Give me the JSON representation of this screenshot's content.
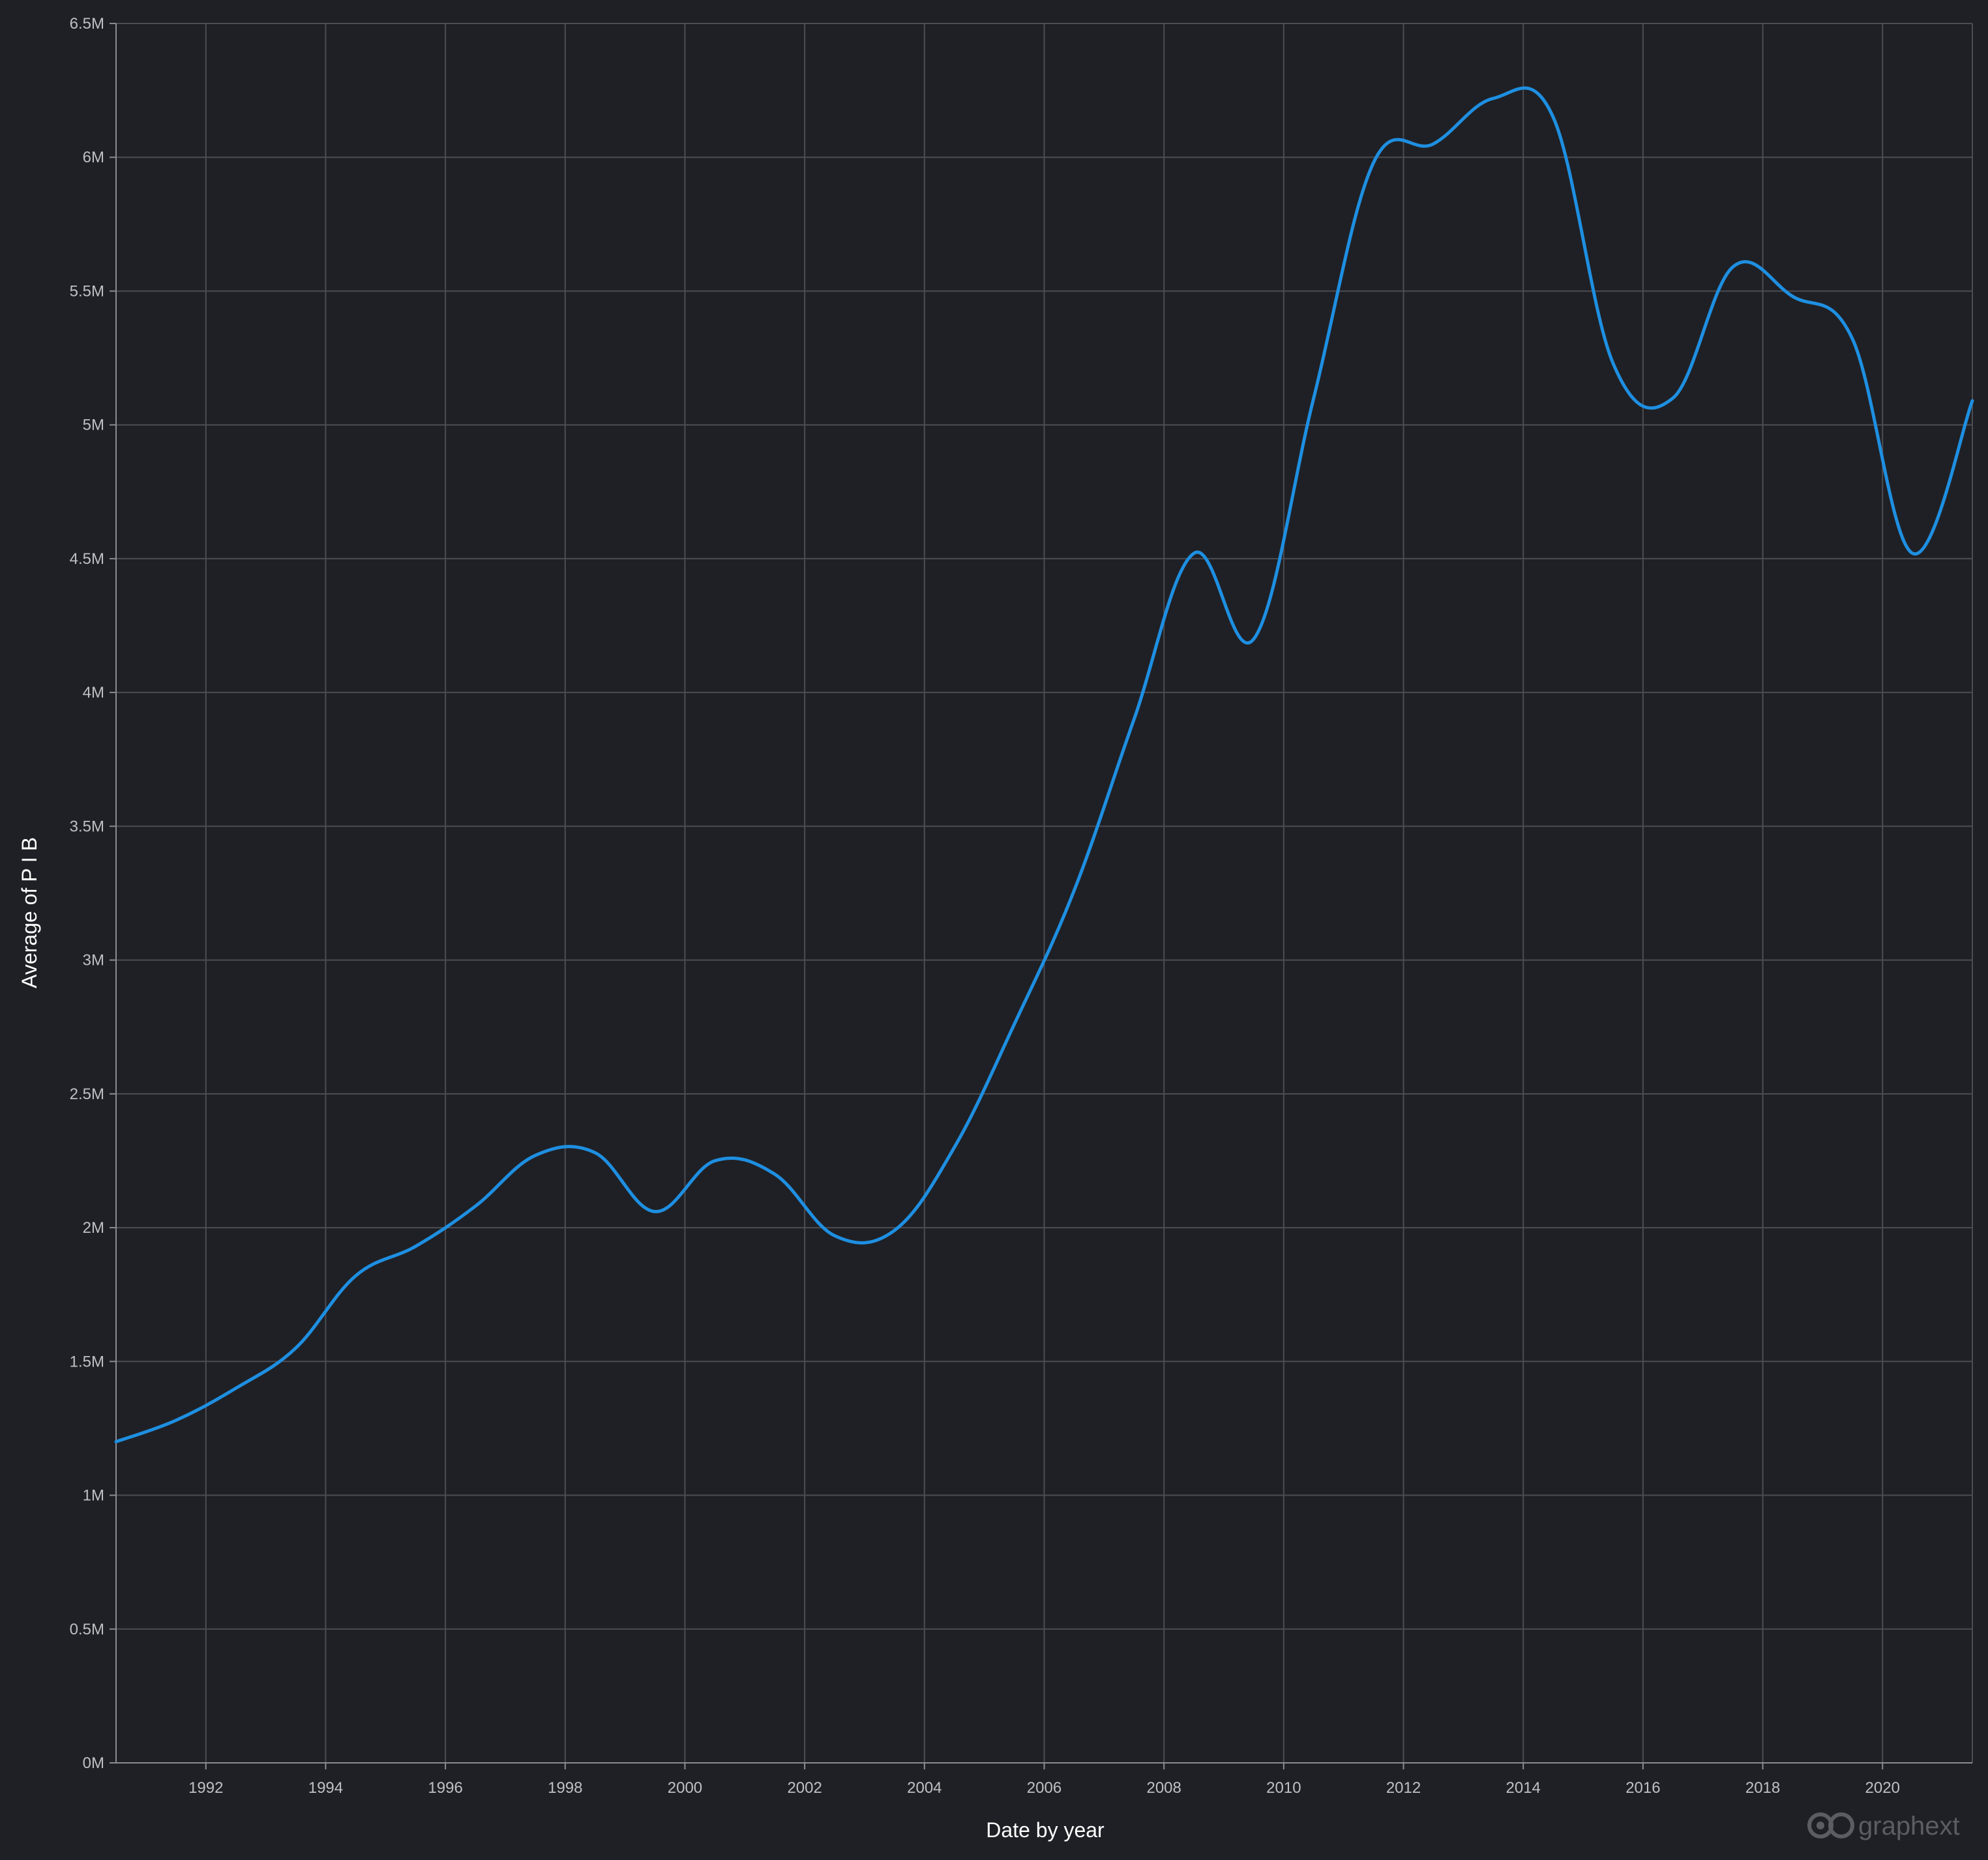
{
  "chart_data": {
    "type": "line",
    "xlabel": "Date by year",
    "ylabel": "Average of P I B",
    "x_ticks": [
      "1992",
      "1994",
      "1996",
      "1998",
      "2000",
      "2002",
      "2004",
      "2006",
      "2008",
      "2010",
      "2012",
      "2014",
      "2016",
      "2018",
      "2020"
    ],
    "y_ticks": [
      "0M",
      "0.5M",
      "1M",
      "1.5M",
      "2M",
      "2.5M",
      "3M",
      "3.5M",
      "4M",
      "4.5M",
      "5M",
      "5.5M",
      "6M",
      "6.5M"
    ],
    "xlim": [
      1990.5,
      2021.5
    ],
    "ylim": [
      0,
      6500000
    ],
    "grid": true,
    "legend": "none",
    "series": [
      {
        "color": "#1e8fe1",
        "x": [
          1990.5,
          1991.5,
          1992.5,
          1993.5,
          1994.5,
          1995.5,
          1996.5,
          1997.5,
          1998.5,
          1999.5,
          2000.5,
          2001.5,
          2002.5,
          2003.5,
          2004.5,
          2005.5,
          2006.5,
          2007.5,
          2008.5,
          2009.5,
          2010.5,
          2011.5,
          2012.5,
          2013.5,
          2014.5,
          2015.5,
          2016.5,
          2017.5,
          2018.5,
          2019.5,
          2020.5,
          2021.5
        ],
        "values": [
          1200000,
          1280000,
          1400000,
          1550000,
          1820000,
          1930000,
          2080000,
          2270000,
          2280000,
          2060000,
          2250000,
          2200000,
          1970000,
          1990000,
          2300000,
          2760000,
          3260000,
          3900000,
          4520000,
          4200000,
          5100000,
          5980000,
          6050000,
          6220000,
          6150000,
          5230000,
          5100000,
          5590000,
          5480000,
          5320000,
          4520000,
          5090000
        ]
      }
    ]
  },
  "branding": {
    "logo_text": "graphext"
  }
}
